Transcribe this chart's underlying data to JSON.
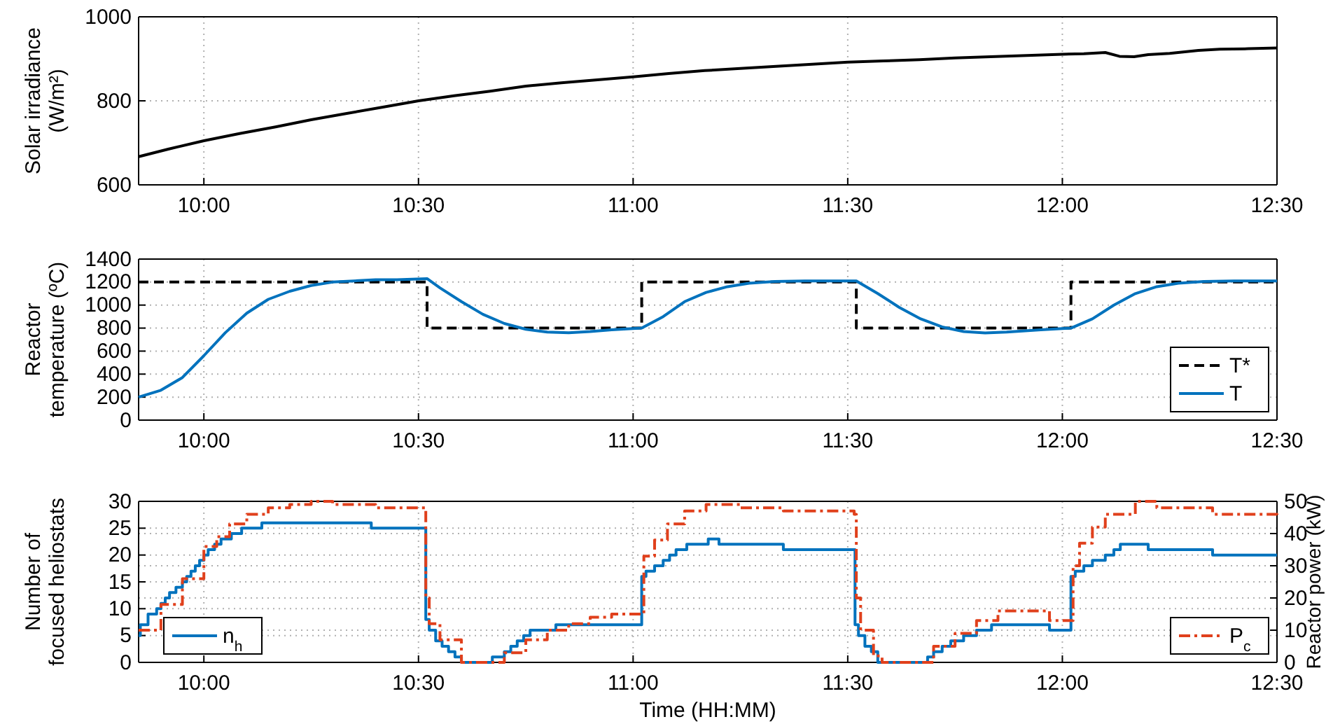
{
  "chart_data": [
    {
      "type": "line",
      "ylabel": "Solar irradiance (W/m²)",
      "xlim": [
        9.848,
        12.5
      ],
      "ylim": [
        600,
        1000
      ],
      "yticks": [
        600,
        800,
        1000
      ],
      "xticks": [
        {
          "value": 10,
          "label": "10:00"
        },
        {
          "value": 10.5,
          "label": "10:30"
        },
        {
          "value": 11,
          "label": "11:00"
        },
        {
          "value": 11.5,
          "label": "11:30"
        },
        {
          "value": 12,
          "label": "12:00"
        },
        {
          "value": 12.5,
          "label": "12:30"
        }
      ],
      "grid": true,
      "series": [
        {
          "color": "#000000",
          "x": [
            9.848,
            9.917,
            10,
            10.083,
            10.167,
            10.25,
            10.333,
            10.417,
            10.5,
            10.583,
            10.667,
            10.75,
            10.833,
            10.917,
            11,
            11.083,
            11.167,
            11.25,
            11.333,
            11.417,
            11.5,
            11.583,
            11.667,
            11.75,
            11.833,
            11.917,
            12,
            12.05,
            12.1,
            12.133,
            12.167,
            12.2,
            12.25,
            12.317,
            12.367,
            12.433,
            12.5
          ],
          "values": [
            667,
            685,
            705,
            722,
            738,
            755,
            770,
            785,
            800,
            812,
            823,
            835,
            843,
            850,
            857,
            865,
            872,
            877,
            882,
            887,
            892,
            895,
            898,
            902,
            905,
            908,
            911,
            912,
            915,
            906,
            905,
            910,
            913,
            920,
            923,
            924,
            926
          ]
        }
      ]
    },
    {
      "type": "line",
      "ylabel": "Reactor temperature (ºC)",
      "xlim": [
        9.848,
        12.5
      ],
      "ylim": [
        0,
        1400
      ],
      "yticks": [
        0,
        200,
        400,
        600,
        800,
        1000,
        1200,
        1400
      ],
      "xticks": [
        {
          "value": 10,
          "label": "10:00"
        },
        {
          "value": 10.5,
          "label": "10:30"
        },
        {
          "value": 11,
          "label": "11:00"
        },
        {
          "value": 11.5,
          "label": "11:30"
        },
        {
          "value": 12,
          "label": "12:00"
        },
        {
          "value": 12.5,
          "label": "12:30"
        }
      ],
      "grid": true,
      "legend": "bottom right",
      "series": [
        {
          "name": "T*",
          "type": "step",
          "line_style": "dashed",
          "color": "#000000",
          "x": [
            9.848,
            10.52,
            11.02,
            11.52,
            12.02,
            12.5
          ],
          "values": [
            1200,
            800,
            1200,
            800,
            1200,
            1200
          ]
        },
        {
          "name": "T",
          "line_style": "solid",
          "color": "#0072bd",
          "x": [
            9.848,
            9.9,
            9.95,
            10,
            10.05,
            10.1,
            10.15,
            10.2,
            10.25,
            10.3,
            10.35,
            10.4,
            10.45,
            10.52,
            10.55,
            10.6,
            10.65,
            10.7,
            10.75,
            10.8,
            10.85,
            10.9,
            10.95,
            11.02,
            11.07,
            11.12,
            11.17,
            11.22,
            11.27,
            11.33,
            11.4,
            11.52,
            11.57,
            11.62,
            11.67,
            11.72,
            11.77,
            11.82,
            11.87,
            11.95,
            12.02,
            12.07,
            12.12,
            12.17,
            12.22,
            12.27,
            12.33,
            12.4,
            12.5
          ],
          "values": [
            200,
            260,
            370,
            560,
            760,
            930,
            1050,
            1120,
            1170,
            1200,
            1210,
            1220,
            1220,
            1230,
            1150,
            1030,
            920,
            840,
            790,
            765,
            760,
            770,
            785,
            800,
            900,
            1030,
            1110,
            1160,
            1190,
            1205,
            1210,
            1210,
            1100,
            980,
            880,
            810,
            770,
            758,
            765,
            785,
            800,
            880,
            1000,
            1100,
            1160,
            1190,
            1205,
            1210,
            1210
          ]
        }
      ]
    },
    {
      "type": "step",
      "ylabel": "Number of focused heliostats",
      "y2label": "Reactor power (kW)",
      "xlabel": "Time (HH:MM)",
      "xlim": [
        9.848,
        12.5
      ],
      "ylim": [
        0,
        30
      ],
      "yticks": [
        0,
        5,
        10,
        15,
        20,
        25,
        30
      ],
      "y2lim": [
        0,
        50
      ],
      "y2ticks": [
        0,
        10,
        20,
        30,
        40,
        50
      ],
      "xticks": [
        {
          "value": 10,
          "label": "10:00"
        },
        {
          "value": 10.5,
          "label": "10:30"
        },
        {
          "value": 11,
          "label": "11:00"
        },
        {
          "value": 11.5,
          "label": "11:30"
        },
        {
          "value": 12,
          "label": "12:00"
        },
        {
          "value": 12.5,
          "label": "12:30"
        }
      ],
      "grid": true,
      "legend": "bottom",
      "series": [
        {
          "name": "n$_{h}$",
          "line_style": "solid",
          "color": "#0072bd",
          "x": [
            9.848,
            9.852,
            9.87,
            9.89,
            9.9,
            9.91,
            9.92,
            9.935,
            9.95,
            9.96,
            9.97,
            9.98,
            9.99,
            10,
            10.01,
            10.025,
            10.04,
            10.064,
            10.088,
            10.135,
            10.39,
            10.517,
            10.525,
            10.54,
            10.555,
            10.57,
            10.585,
            10.6,
            10.672,
            10.7,
            10.715,
            10.73,
            10.745,
            10.76,
            10.82,
            11.02,
            11.03,
            11.05,
            11.07,
            11.085,
            11.1,
            11.125,
            11.175,
            11.2,
            11.35,
            11.517,
            11.525,
            11.54,
            11.555,
            11.57,
            11.686,
            11.7,
            11.72,
            11.74,
            11.77,
            11.8,
            11.835,
            11.97,
            12.02,
            12.03,
            12.05,
            12.07,
            12.1,
            12.12,
            12.135,
            12.2,
            12.35,
            12.5
          ],
          "values": [
            5,
            7,
            9,
            10,
            11,
            12,
            13,
            14,
            15,
            16,
            17,
            18,
            19,
            20,
            21,
            22,
            23,
            24,
            25,
            26,
            25,
            8,
            6,
            4,
            3,
            2,
            1,
            0,
            1,
            2,
            3,
            4,
            5,
            6,
            7,
            16,
            17,
            18,
            19,
            20,
            21,
            22,
            23,
            22,
            21,
            7,
            5,
            3,
            2,
            0,
            1,
            2,
            3,
            4,
            5,
            6,
            7,
            6,
            16,
            17,
            18,
            19,
            20,
            21,
            22,
            21,
            20,
            20
          ]
        },
        {
          "name": "P$_{c}$",
          "axis": "y2",
          "line_style": "dashdot",
          "color": "#e0401c",
          "x": [
            9.848,
            9.9,
            9.95,
            10,
            10.03,
            10.06,
            10.1,
            10.15,
            10.2,
            10.25,
            10.3,
            10.35,
            10.4,
            10.517,
            10.525,
            10.55,
            10.6,
            10.69,
            10.7,
            10.75,
            10.8,
            10.85,
            10.9,
            10.95,
            11.02,
            11.025,
            11.05,
            11.08,
            11.12,
            11.17,
            11.25,
            11.35,
            11.515,
            11.52,
            11.53,
            11.56,
            11.58,
            11.69,
            11.7,
            11.75,
            11.8,
            11.85,
            11.97,
            12.02,
            12.025,
            12.04,
            12.07,
            12.1,
            12.17,
            12.22,
            12.35,
            12.5
          ],
          "values": [
            10,
            18,
            26,
            36,
            39,
            43,
            46,
            48,
            49,
            50,
            49,
            49,
            48,
            20,
            12,
            7,
            0,
            0,
            3,
            7,
            10,
            12,
            14,
            15,
            15,
            33,
            38,
            43,
            47,
            49,
            48,
            47,
            46,
            20,
            10,
            2,
            0,
            0,
            5,
            9,
            13,
            16,
            13,
            13,
            30,
            37,
            42,
            46,
            50,
            48,
            46,
            45
          ]
        }
      ]
    }
  ]
}
